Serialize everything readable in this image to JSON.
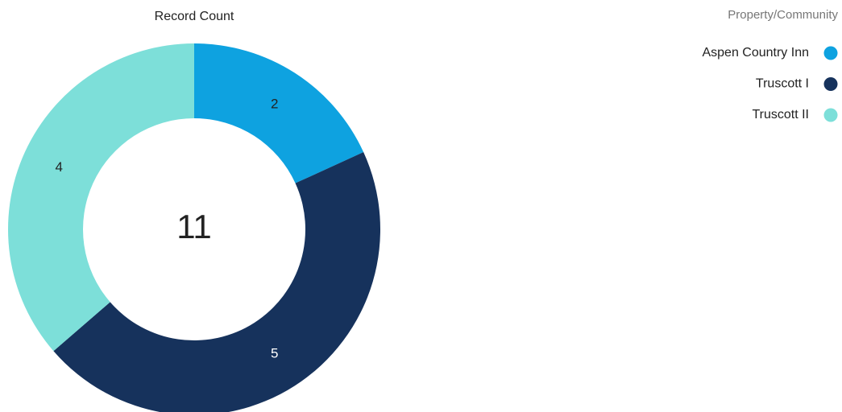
{
  "chart_data": {
    "type": "donut",
    "title": "Record Count",
    "total": 11,
    "legend_title": "Property/Community",
    "categories": [
      "Aspen Country Inn",
      "Truscott I",
      "Truscott II"
    ],
    "values": [
      2,
      5,
      4
    ],
    "colors": [
      "#0ea2e0",
      "#16325c",
      "#7ddfd9"
    ],
    "label_colors": [
      "#222222",
      "#ffffff",
      "#222222"
    ],
    "legend": "top-right"
  }
}
